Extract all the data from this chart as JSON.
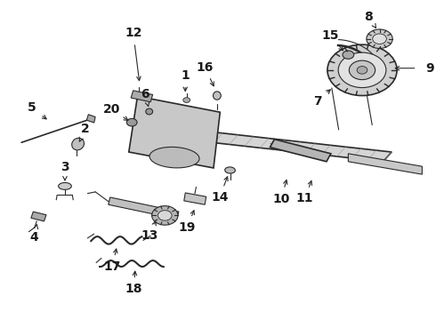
{
  "background_color": "#ffffff",
  "fig_width": 4.9,
  "fig_height": 3.6,
  "dpi": 100,
  "text_color": "#1a1a1a",
  "label_fontsize": 10,
  "label_fontweight": "bold",
  "line_color": "#2a2a2a",
  "labels": {
    "1": [
      0.425,
      0.735,
      0.425,
      0.705
    ],
    "2": [
      0.185,
      0.568,
      0.178,
      0.548
    ],
    "3": [
      0.148,
      0.448,
      0.148,
      0.425
    ],
    "4": [
      0.082,
      0.288,
      0.085,
      0.308
    ],
    "5": [
      0.092,
      0.642,
      0.112,
      0.622
    ],
    "6": [
      0.338,
      0.678,
      0.342,
      0.658
    ],
    "7": [
      0.748,
      0.708,
      0.765,
      0.728
    ],
    "8": [
      0.86,
      0.922,
      0.868,
      0.905
    ],
    "9": [
      0.958,
      0.788,
      0.9,
      0.788
    ],
    "10": [
      0.652,
      0.408,
      0.66,
      0.448
    ],
    "11": [
      0.708,
      0.408,
      0.718,
      0.445
    ],
    "12": [
      0.308,
      0.868,
      0.32,
      0.738
    ],
    "13": [
      0.352,
      0.292,
      0.36,
      0.318
    ],
    "14": [
      0.512,
      0.412,
      0.525,
      0.458
    ],
    "15": [
      0.775,
      0.865,
      0.793,
      0.835
    ],
    "16": [
      0.48,
      0.762,
      0.494,
      0.722
    ],
    "17": [
      0.262,
      0.195,
      0.268,
      0.232
    ],
    "18": [
      0.308,
      0.125,
      0.31,
      0.162
    ],
    "19": [
      0.438,
      0.318,
      0.448,
      0.352
    ],
    "20": [
      0.278,
      0.638,
      0.3,
      0.618
    ]
  }
}
